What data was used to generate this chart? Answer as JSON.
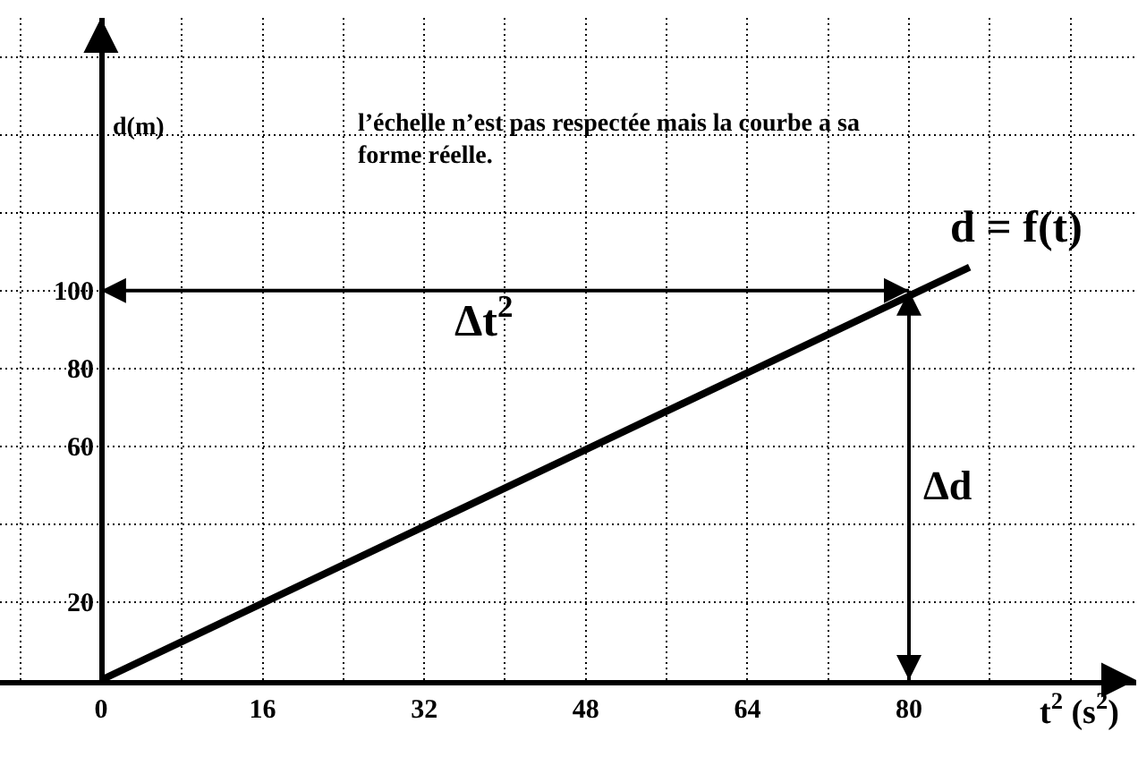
{
  "chart_data": {
    "type": "line",
    "xlabel": "t$^{2}$ (s$^{2}$)",
    "ylabel": "d(m)",
    "annotations": [
      "l’échelle n’est pas respectée mais la courbe a sa forme réelle."
    ],
    "ref_lines": [
      {
        "axis": "y",
        "value": 100,
        "label": "Δt$^{2}$"
      },
      {
        "axis": "x",
        "value": 80,
        "label": "Δd"
      }
    ],
    "x": [
      0,
      86
    ],
    "series": [
      {
        "name": "d = f(t)",
        "color": "#000000",
        "values": [
          0,
          106
        ]
      }
    ],
    "xlim": [
      -10,
      102.5
    ],
    "ylim": [
      0,
      170
    ],
    "xticks": [
      {
        "value": -8,
        "label": null
      },
      0,
      {
        "value": 8,
        "label": null
      },
      16,
      {
        "value": 24,
        "label": null
      },
      32,
      {
        "value": 40,
        "label": null
      },
      48,
      {
        "value": 56,
        "label": null
      },
      64,
      {
        "value": 72,
        "label": null
      },
      80,
      {
        "value": 88,
        "label": null
      },
      {
        "value": 96,
        "label": null
      }
    ],
    "yticks": [
      20,
      {
        "value": 40,
        "label": null
      },
      60,
      80,
      100,
      {
        "value": 120,
        "label": null
      },
      {
        "value": 140,
        "label": null
      },
      {
        "value": 160,
        "label": null
      }
    ],
    "grid": true,
    "line_style": "solid"
  }
}
